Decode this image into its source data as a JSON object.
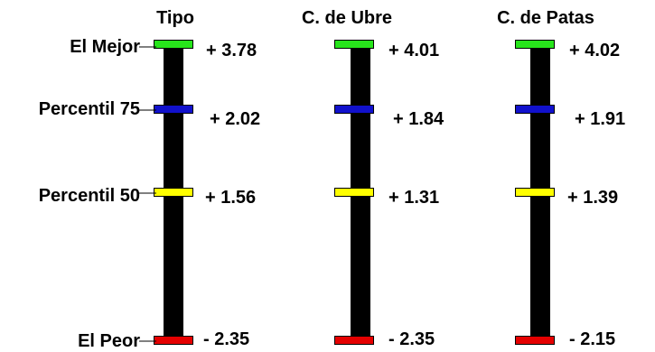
{
  "chart_data": {
    "type": "bar",
    "row_labels": [
      "El Mejor",
      "Percentil 75",
      "Percentil 50",
      "El Peor"
    ],
    "marker_colors": [
      "#27e51b",
      "#1111cc",
      "#ffff00",
      "#e50000"
    ],
    "panels": [
      {
        "title": "Tipo",
        "values": [
          "+ 3.78",
          "+ 2.02",
          "+ 1.56",
          "- 2.35"
        ]
      },
      {
        "title": "C. de Ubre",
        "values": [
          "+ 4.01",
          "+ 1.84",
          "+ 1.31",
          "- 2.35"
        ]
      },
      {
        "title": "C. de Patas",
        "values": [
          "+ 4.02",
          "+ 1.91",
          "+ 1.39",
          "- 2.15"
        ]
      }
    ]
  }
}
